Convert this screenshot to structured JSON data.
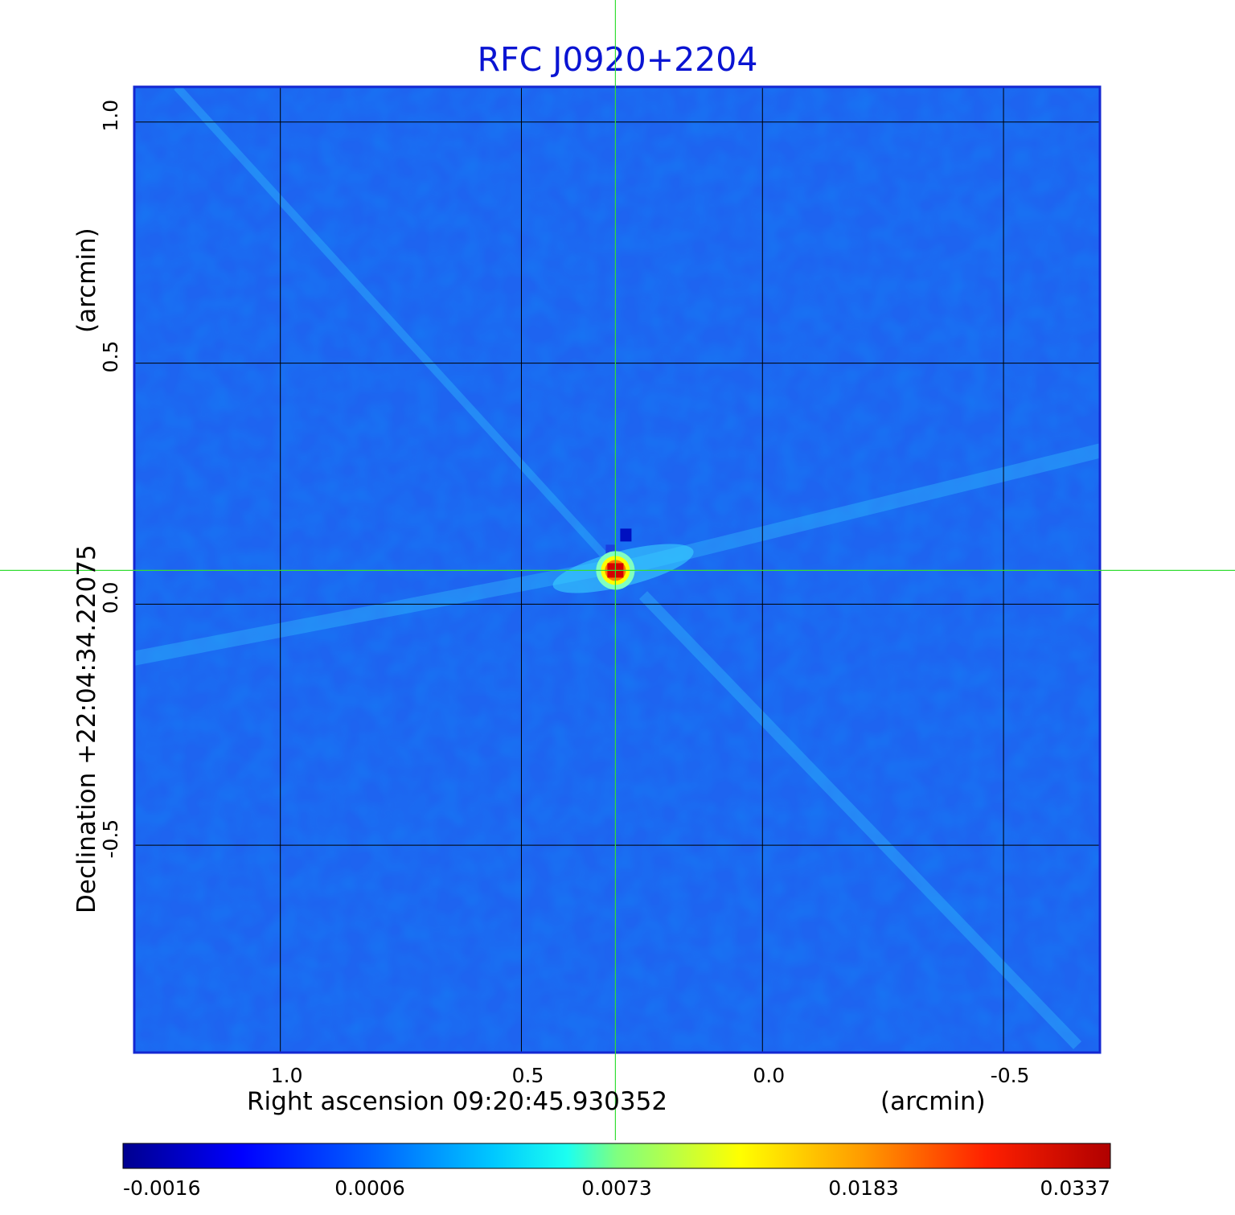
{
  "chart_data": {
    "type": "heatmap",
    "title": "RFC J0920+2204",
    "title_color": "#0a14d2",
    "xlabel": "Right ascension  09:20:45.930352",
    "xunit": "(arcmin)",
    "ylabel": "Declination  +22:04:34.22075",
    "yunit": "(arcmin)",
    "x_axis": {
      "direction": "reversed",
      "range": [
        1.303,
        -0.7
      ],
      "ticks": [
        1.0,
        0.5,
        0.0,
        -0.5
      ],
      "tick_labels": [
        "1.0",
        "0.5",
        "0.0",
        "-0.5"
      ]
    },
    "y_axis": {
      "range": [
        -0.93,
        1.073
      ],
      "ticks": [
        1.0,
        0.5,
        0.0,
        -0.5
      ],
      "tick_labels": [
        "1.0",
        "0.5",
        "0.0",
        "-0.5"
      ]
    },
    "grid": true,
    "crosshair": {
      "x": 0.305,
      "y": 0.07,
      "color": "#33dd33"
    },
    "peak": {
      "x": 0.305,
      "y": 0.07,
      "value": 0.0337
    },
    "colorbar": {
      "colormap": "jet",
      "tick_values": [
        -0.0016,
        0.0006,
        0.0073,
        0.0183,
        0.0337
      ],
      "tick_labels": [
        "-0.0016",
        "0.0006",
        "0.0073",
        "0.0183",
        "0.0337"
      ]
    },
    "frame_color": "#1428d2",
    "background_color": "#1e64f0"
  }
}
